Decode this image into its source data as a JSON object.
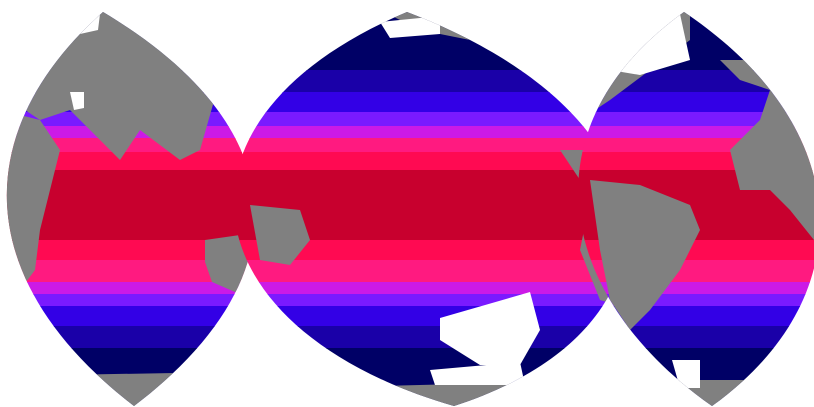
{
  "map": {
    "projection": "interrupted-sinusoidal-three-lobe",
    "colors": {
      "land": "#808080",
      "no_data": "#ffffff",
      "background": "#ffffff"
    },
    "color_scale": [
      "#000066",
      "#1a00a8",
      "#3300e6",
      "#7a1aff",
      "#cc1ae6",
      "#ff1a80",
      "#ff0a52",
      "#c8002e"
    ],
    "lobes": [
      "indian-ocean-lobe",
      "pacific-ocean-lobe",
      "atlantic-ocean-lobe"
    ]
  }
}
